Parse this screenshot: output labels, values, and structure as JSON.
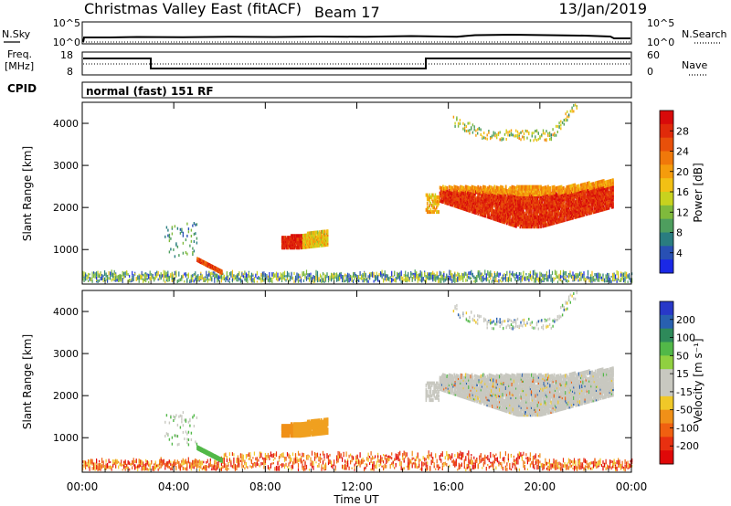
{
  "header": {
    "title": "Christmas Valley East (fitACF)",
    "beam": "Beam 17",
    "date": "13/Jan/2019"
  },
  "top_panels": {
    "nsky_label": "N.Sky",
    "nsky_ticks": [
      "10^5",
      "10^0"
    ],
    "nsearch_label": "N.Search",
    "nsearch_ticks": [
      "10^5",
      "10^0"
    ],
    "freq_label_1": "Freq.",
    "freq_label_2": "[MHz]",
    "freq_ticks": [
      "18",
      "8"
    ],
    "nave_label": "Nave",
    "nave_ticks": [
      "60",
      "0"
    ],
    "cpid_label": "CPID",
    "cpid_text": "normal (fast) 151 RF"
  },
  "chart_data": [
    {
      "type": "heatmap",
      "name": "power",
      "ylabel": "Slant Range [km]",
      "yticks": [
        "1000",
        "2000",
        "3000",
        "4000"
      ],
      "ylim": [
        180,
        4500
      ],
      "xlim_hours": [
        0,
        24
      ],
      "colorbar": {
        "label": "Power [dB]",
        "ticks": [
          "4",
          "8",
          "12",
          "16",
          "20",
          "24",
          "28"
        ],
        "colors": [
          "#1a28e6",
          "#2850b4",
          "#2a7d80",
          "#4e9e5e",
          "#7fba3c",
          "#c8d21e",
          "#f2c014",
          "#f59c0c",
          "#f0780a",
          "#e8500a",
          "#e02a0a",
          "#d80a0a"
        ]
      }
    },
    {
      "type": "heatmap",
      "name": "velocity",
      "ylabel": "Slant Range [km]",
      "yticks": [
        "1000",
        "2000",
        "3000",
        "4000"
      ],
      "ylim": [
        180,
        4500
      ],
      "xlim_hours": [
        0,
        24
      ],
      "colorbar": {
        "label": "Velocity [m s⁻¹]",
        "ticks": [
          "200",
          "100",
          "50",
          "15",
          "-15",
          "-50",
          "-100",
          "-200"
        ],
        "colors": [
          "#2838c8",
          "#2860b0",
          "#2e8a5a",
          "#52b848",
          "#90d040",
          "#c8c8c0",
          "#c8c8c0",
          "#f0c828",
          "#f09018",
          "#f06010",
          "#e83010",
          "#e00808"
        ]
      }
    }
  ],
  "xaxis": {
    "ticks": [
      "00:00",
      "04:00",
      "08:00",
      "12:00",
      "16:00",
      "20:00",
      "00:00"
    ],
    "label": "Time UT"
  }
}
